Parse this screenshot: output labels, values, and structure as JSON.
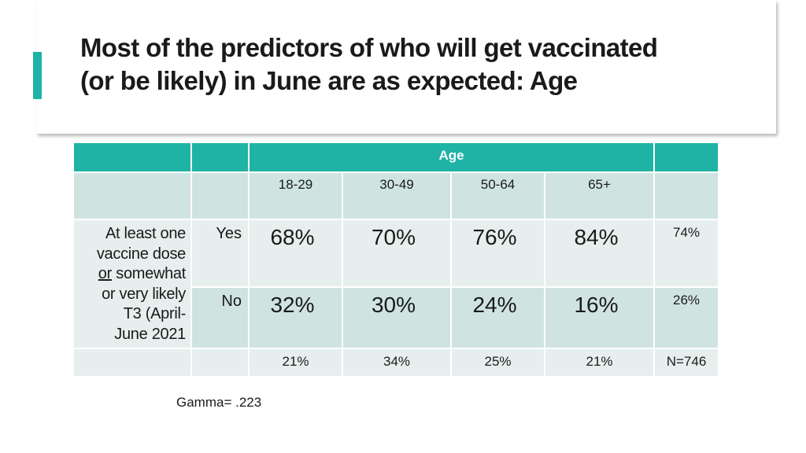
{
  "slide": {
    "title": "Most of the predictors of who will get vaccinated (or be likely) in June are as expected:  Age",
    "accent_color": "#1fb3a6"
  },
  "table": {
    "group_header": "Age",
    "columns": [
      "18-29",
      "30-49",
      "50-64",
      "65+"
    ],
    "row_label": {
      "line1": "At least one",
      "line2": "vaccine dose",
      "or_word": "or",
      "line3_rest": " somewhat",
      "line4": "or very likely",
      "line5": "T3 (April-",
      "line6": "June 2021"
    },
    "rows": [
      {
        "label": "Yes",
        "values": [
          "68%",
          "70%",
          "76%",
          "84%"
        ],
        "total": "74%"
      },
      {
        "label": "No",
        "values": [
          "32%",
          "30%",
          "24%",
          "16%"
        ],
        "total": "26%"
      }
    ],
    "footer": {
      "values": [
        "21%",
        "34%",
        "25%",
        "21%"
      ],
      "total": "N=746"
    }
  },
  "note": "Gamma= .223"
}
